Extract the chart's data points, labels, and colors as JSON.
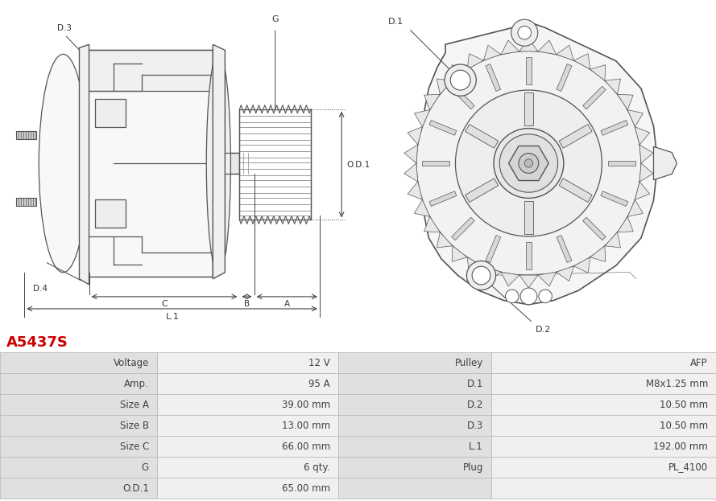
{
  "title": "A5437S",
  "title_color": "#cc0000",
  "table_rows": [
    [
      "Voltage",
      "12 V",
      "Pulley",
      "AFP"
    ],
    [
      "Amp.",
      "95 A",
      "D.1",
      "M8x1.25 mm"
    ],
    [
      "Size A",
      "39.00 mm",
      "D.2",
      "10.50 mm"
    ],
    [
      "Size B",
      "13.00 mm",
      "D.3",
      "10.50 mm"
    ],
    [
      "Size C",
      "66.00 mm",
      "L.1",
      "192.00 mm"
    ],
    [
      "G",
      "6 qty.",
      "Plug",
      "PL_4100"
    ],
    [
      "O.D.1",
      "65.00 mm",
      "",
      ""
    ]
  ],
  "header_bg": "#e0e0e0",
  "alt_bg": "#f0f0f0",
  "border_color": "#cccccc",
  "font_size": 8.5,
  "title_fontsize": 13,
  "line_color": "#555555",
  "dim_color": "#444444",
  "label_fontsize": 7.5
}
